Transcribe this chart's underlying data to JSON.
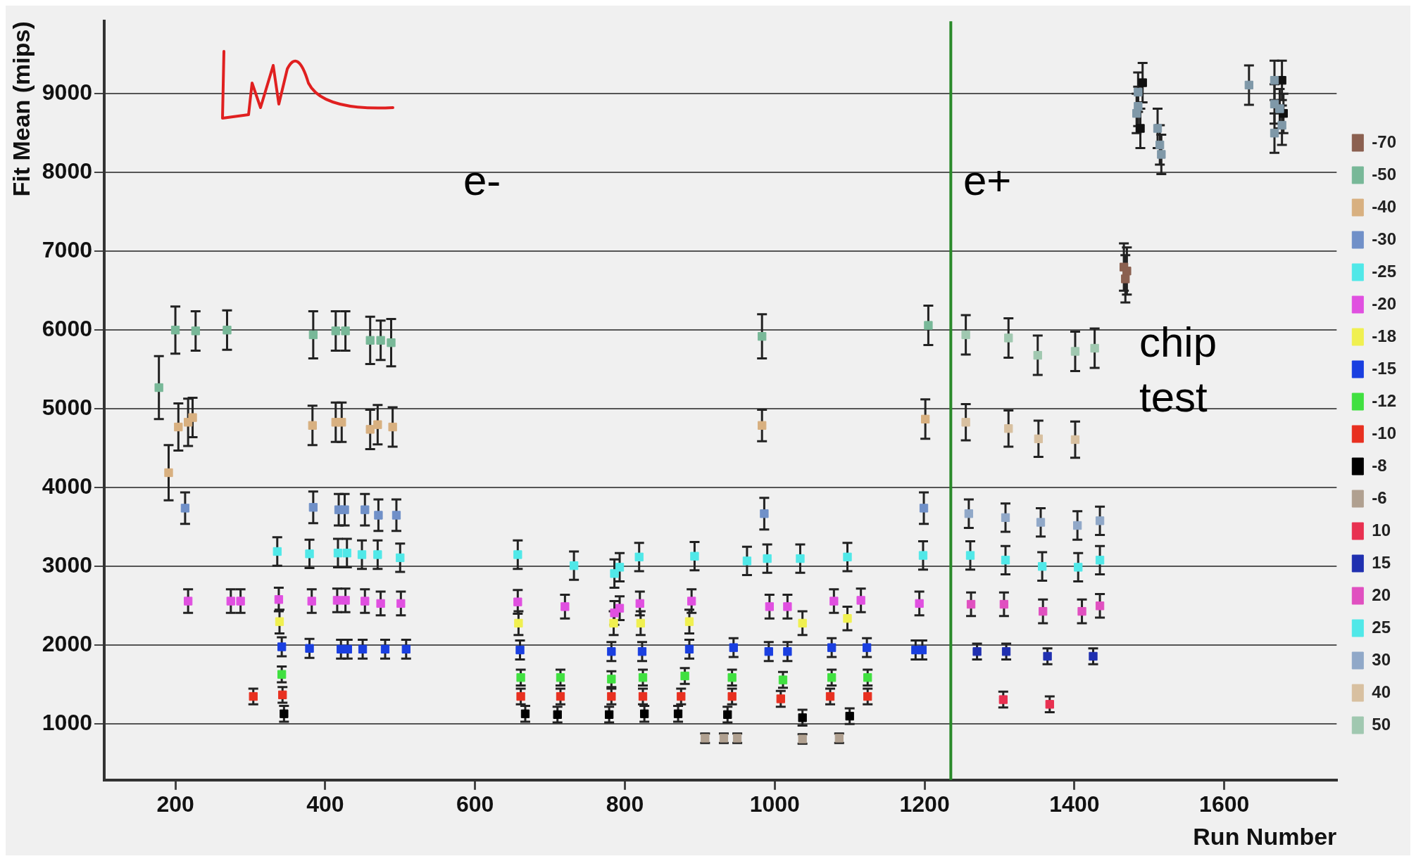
{
  "chart_data": {
    "type": "scatter",
    "xlabel": "Run Number",
    "ylabel": "Fit Mean (mips)",
    "xlim": [
      105,
      1750
    ],
    "ylim": [
      290,
      9920
    ],
    "xticks": [
      200,
      400,
      600,
      800,
      1000,
      1200,
      1400,
      1600
    ],
    "yticks": [
      1000,
      2000,
      3000,
      4000,
      5000,
      6000,
      7000,
      8000,
      9000
    ],
    "grid": "y",
    "legend": "right",
    "marker": "square",
    "ref_lines": [
      {
        "axis": "x",
        "value": 1235,
        "color": "#2a8a2a"
      }
    ],
    "annotations": [
      "e-",
      "e+",
      "chip test"
    ],
    "series": [
      {
        "name": "-70",
        "color": "#8b6050",
        "x": [
          1466,
          1468,
          1470
        ],
        "values": [
          6800,
          6650,
          6750
        ],
        "errors": [
          300,
          300,
          300
        ]
      },
      {
        "name": "-50",
        "color": "#78b898",
        "x": [
          178,
          200,
          227,
          269,
          384,
          414,
          427,
          460,
          474,
          488,
          983,
          1205
        ],
        "values": [
          5270,
          6000,
          5990,
          6000,
          5940,
          5990,
          5990,
          5870,
          5870,
          5840,
          5920,
          6060
        ],
        "errors": [
          400,
          300,
          250,
          250,
          300,
          250,
          250,
          300,
          250,
          300,
          280,
          250
        ]
      },
      {
        "name": "-40",
        "color": "#d8b080",
        "x": [
          191,
          204,
          217,
          223,
          383,
          414,
          422,
          460,
          470,
          490,
          983,
          1201
        ],
        "values": [
          4190,
          4770,
          4830,
          4890,
          4790,
          4830,
          4830,
          4740,
          4800,
          4770,
          4790,
          4870
        ],
        "errors": [
          350,
          300,
          300,
          250,
          250,
          250,
          250,
          250,
          250,
          250,
          200,
          250
        ]
      },
      {
        "name": "-30",
        "color": "#7090c8",
        "x": [
          213,
          384,
          418,
          426,
          453,
          471,
          495,
          986,
          1199
        ],
        "values": [
          3740,
          3750,
          3720,
          3720,
          3720,
          3650,
          3650,
          3670,
          3740
        ],
        "errors": [
          200,
          200,
          200,
          200,
          200,
          200,
          200,
          200,
          200
        ]
      },
      {
        "name": "-25",
        "color": "#50e8e8",
        "x": [
          336,
          379,
          417,
          429,
          449,
          470,
          500,
          657,
          732,
          786,
          793,
          819,
          893,
          963,
          990,
          1034,
          1097,
          1198
        ],
        "values": [
          3190,
          3160,
          3170,
          3170,
          3150,
          3150,
          3110,
          3150,
          3010,
          2910,
          2990,
          3120,
          3130,
          3070,
          3100,
          3100,
          3120,
          3140
        ],
        "errors": [
          180,
          180,
          180,
          180,
          180,
          180,
          180,
          180,
          180,
          180,
          180,
          180,
          180,
          180,
          180,
          180,
          180,
          180
        ]
      },
      {
        "name": "-20",
        "color": "#e050e0",
        "x": [
          217,
          274,
          287,
          338,
          382,
          416,
          427,
          453,
          474,
          501,
          657,
          720,
          786,
          793,
          820,
          889,
          993,
          1017,
          1079,
          1115,
          1193
        ],
        "values": [
          2560,
          2560,
          2560,
          2580,
          2560,
          2570,
          2570,
          2560,
          2530,
          2530,
          2550,
          2490,
          2410,
          2470,
          2530,
          2560,
          2490,
          2490,
          2560,
          2570,
          2530
        ],
        "errors": [
          150,
          150,
          150,
          150,
          150,
          150,
          150,
          150,
          150,
          150,
          150,
          150,
          150,
          150,
          150,
          150,
          150,
          150,
          150,
          150,
          150
        ]
      },
      {
        "name": "-18",
        "color": "#f0f050",
        "x": [
          339,
          658,
          785,
          821,
          886,
          1037,
          1097
        ],
        "values": [
          2300,
          2280,
          2280,
          2280,
          2300,
          2280,
          2340
        ],
        "errors": [
          150,
          150,
          150,
          150,
          150,
          150,
          150
        ]
      },
      {
        "name": "-15",
        "color": "#1a3fe0",
        "x": [
          342,
          379,
          421,
          430,
          450,
          480,
          508,
          660,
          782,
          823,
          886,
          945,
          992,
          1017,
          1076,
          1123,
          1188,
          1197
        ],
        "values": [
          1980,
          1960,
          1950,
          1950,
          1950,
          1950,
          1950,
          1940,
          1920,
          1920,
          1950,
          1970,
          1920,
          1920,
          1970,
          1970,
          1940,
          1940
        ],
        "errors": [
          120,
          120,
          120,
          120,
          120,
          120,
          120,
          120,
          120,
          120,
          120,
          120,
          120,
          120,
          120,
          120,
          120,
          120
        ]
      },
      {
        "name": "-12",
        "color": "#40e040",
        "x": [
          342,
          661,
          714,
          782,
          824,
          880,
          943,
          1011,
          1076,
          1124
        ],
        "values": [
          1630,
          1590,
          1590,
          1570,
          1590,
          1610,
          1590,
          1560,
          1590,
          1590
        ],
        "errors": [
          100,
          100,
          100,
          100,
          100,
          100,
          100,
          100,
          100,
          100
        ]
      },
      {
        "name": "-10",
        "color": "#e83020",
        "x": [
          304,
          343,
          661,
          714,
          782,
          824,
          875,
          943,
          1008,
          1074,
          1124
        ],
        "values": [
          1350,
          1370,
          1350,
          1350,
          1350,
          1350,
          1350,
          1350,
          1320,
          1350,
          1350
        ],
        "errors": [
          100,
          100,
          100,
          100,
          100,
          100,
          100,
          100,
          100,
          100,
          100
        ]
      },
      {
        "name": "-8",
        "color": "#000000",
        "x": [
          345,
          667,
          710,
          779,
          826,
          871,
          937,
          1037,
          1100
        ],
        "values": [
          1130,
          1130,
          1120,
          1120,
          1130,
          1130,
          1120,
          1080,
          1100
        ],
        "errors": [
          100,
          100,
          100,
          100,
          100,
          100,
          100,
          100,
          100
        ]
      },
      {
        "name": "-6",
        "color": "#b0a090",
        "x": [
          907,
          932,
          950,
          1037,
          1086
        ],
        "values": [
          820,
          820,
          820,
          810,
          820
        ],
        "errors": [
          60,
          60,
          60,
          60,
          60
        ]
      },
      {
        "name": "10",
        "color": "#e83050",
        "x": [
          1305,
          1367
        ],
        "values": [
          1310,
          1250
        ],
        "errors": [
          100,
          100
        ]
      },
      {
        "name": "15",
        "color": "#2030b0",
        "x": [
          1270,
          1309,
          1364,
          1425
        ],
        "values": [
          1920,
          1920,
          1860,
          1860
        ],
        "errors": [
          100,
          100,
          100,
          100
        ]
      },
      {
        "name": "20",
        "color": "#e050c0",
        "x": [
          1262,
          1306,
          1358,
          1410,
          1434
        ],
        "values": [
          2520,
          2520,
          2430,
          2430,
          2500
        ],
        "errors": [
          150,
          150,
          150,
          150,
          150
        ]
      },
      {
        "name": "25",
        "color": "#50e8e8",
        "x": [
          1261,
          1308,
          1357,
          1405,
          1434
        ],
        "values": [
          3140,
          3080,
          3000,
          2990,
          3080
        ],
        "errors": [
          180,
          180,
          180,
          180,
          180
        ]
      },
      {
        "name": "30",
        "color": "#90a8c8",
        "x": [
          1259,
          1308,
          1355,
          1404,
          1434
        ],
        "values": [
          3670,
          3620,
          3560,
          3520,
          3580
        ],
        "errors": [
          180,
          180,
          180,
          180,
          180
        ]
      },
      {
        "name": "40",
        "color": "#d8c0a0",
        "x": [
          1255,
          1312,
          1352,
          1401
        ],
        "values": [
          4830,
          4750,
          4620,
          4610
        ],
        "errors": [
          230,
          230,
          230,
          230
        ]
      },
      {
        "name": "50",
        "color": "#a0c8b0",
        "x": [
          1255,
          1312,
          1351,
          1401,
          1427
        ],
        "values": [
          5940,
          5900,
          5680,
          5730,
          5770
        ],
        "errors": [
          250,
          250,
          250,
          250,
          250
        ]
      },
      {
        "color": "#7f98a8",
        "x": [
          1485,
          1485,
          1483,
          1511,
          1514,
          1516,
          1633,
          1667,
          1667,
          1674,
          1667,
          1677
        ],
        "values": [
          9020,
          8840,
          8750,
          8560,
          8350,
          8230,
          9110,
          9170,
          8870,
          8810,
          8500,
          8600
        ],
        "errors": [
          250,
          250,
          250,
          250,
          250,
          250,
          250,
          250,
          250,
          250,
          250,
          250
        ]
      },
      {
        "color": "#101010",
        "x": [
          1488,
          1491,
          1677,
          1679
        ],
        "values": [
          8560,
          9140,
          9170,
          8750
        ],
        "errors": [
          250,
          250,
          250,
          250
        ]
      }
    ]
  }
}
